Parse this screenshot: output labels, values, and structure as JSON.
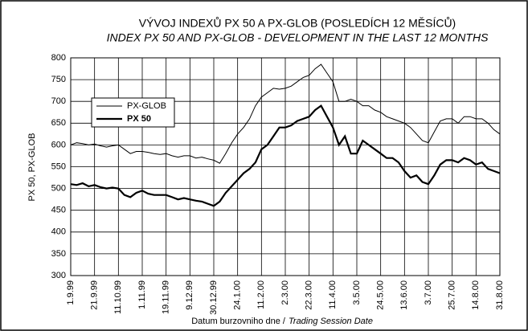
{
  "chart_data": {
    "type": "line",
    "title": "VÝVOJ INDEXŮ PX 50  A PX-GLOB (POSLEDÍCH 12 MĚSÍCŮ)",
    "subtitle": "INDEX PX 50 AND PX-GLOB - DEVELOPMENT IN THE LAST 12 MONTHS",
    "y_label": "PX 50, PX-GLOB",
    "x_label": "Datum burzovniho dne /",
    "x_label_italic": "Trading Session Date",
    "categories": [
      "1.9.99",
      null,
      null,
      null,
      "21.9.99",
      null,
      null,
      null,
      "11.10.99",
      null,
      null,
      null,
      "1.11.99",
      null,
      null,
      null,
      "19.11.99",
      null,
      null,
      null,
      "9.12.99",
      null,
      null,
      null,
      "30.12.99",
      null,
      null,
      null,
      "24.1.00",
      null,
      null,
      null,
      "11.2.00",
      null,
      null,
      null,
      "2.3.00",
      null,
      null,
      null,
      "22.3.00",
      null,
      null,
      null,
      "11.4.00",
      null,
      null,
      null,
      "3.5.00",
      null,
      null,
      null,
      "24.5.00",
      null,
      null,
      null,
      "13.6.00",
      null,
      null,
      null,
      "3.7.00",
      null,
      null,
      null,
      "25.7.00",
      null,
      null,
      null,
      "14.8.00",
      null,
      null,
      null,
      "31.8.00"
    ],
    "series": [
      {
        "name": "PX-GLOB",
        "color": "#000000",
        "width": 1,
        "values": [
          600,
          605,
          603,
          600,
          602,
          598,
          595,
          598,
          600,
          590,
          580,
          585,
          585,
          583,
          580,
          578,
          580,
          575,
          572,
          575,
          575,
          570,
          572,
          568,
          565,
          558,
          580,
          605,
          625,
          640,
          660,
          690,
          710,
          720,
          730,
          728,
          730,
          735,
          745,
          755,
          760,
          775,
          785,
          765,
          745,
          700,
          700,
          705,
          700,
          690,
          690,
          680,
          675,
          665,
          660,
          655,
          650,
          640,
          625,
          610,
          605,
          630,
          655,
          660,
          660,
          650,
          665,
          665,
          660,
          660,
          650,
          635,
          625
        ]
      },
      {
        "name": "PX 50",
        "color": "#000000",
        "width": 2.2,
        "values": [
          510,
          508,
          512,
          505,
          508,
          503,
          500,
          502,
          500,
          485,
          480,
          490,
          495,
          488,
          485,
          485,
          485,
          480,
          475,
          478,
          475,
          472,
          470,
          465,
          460,
          470,
          490,
          505,
          520,
          535,
          545,
          560,
          590,
          600,
          620,
          640,
          640,
          645,
          655,
          660,
          665,
          680,
          690,
          665,
          640,
          600,
          620,
          580,
          580,
          610,
          600,
          590,
          580,
          570,
          570,
          560,
          540,
          525,
          530,
          515,
          510,
          530,
          555,
          565,
          565,
          560,
          570,
          565,
          555,
          560,
          545,
          540,
          535
        ]
      }
    ],
    "ylim": [
      300,
      800
    ],
    "yticks": [
      300,
      350,
      400,
      450,
      500,
      550,
      600,
      650,
      700,
      750,
      800
    ],
    "grid": true,
    "legend": "upper left"
  }
}
